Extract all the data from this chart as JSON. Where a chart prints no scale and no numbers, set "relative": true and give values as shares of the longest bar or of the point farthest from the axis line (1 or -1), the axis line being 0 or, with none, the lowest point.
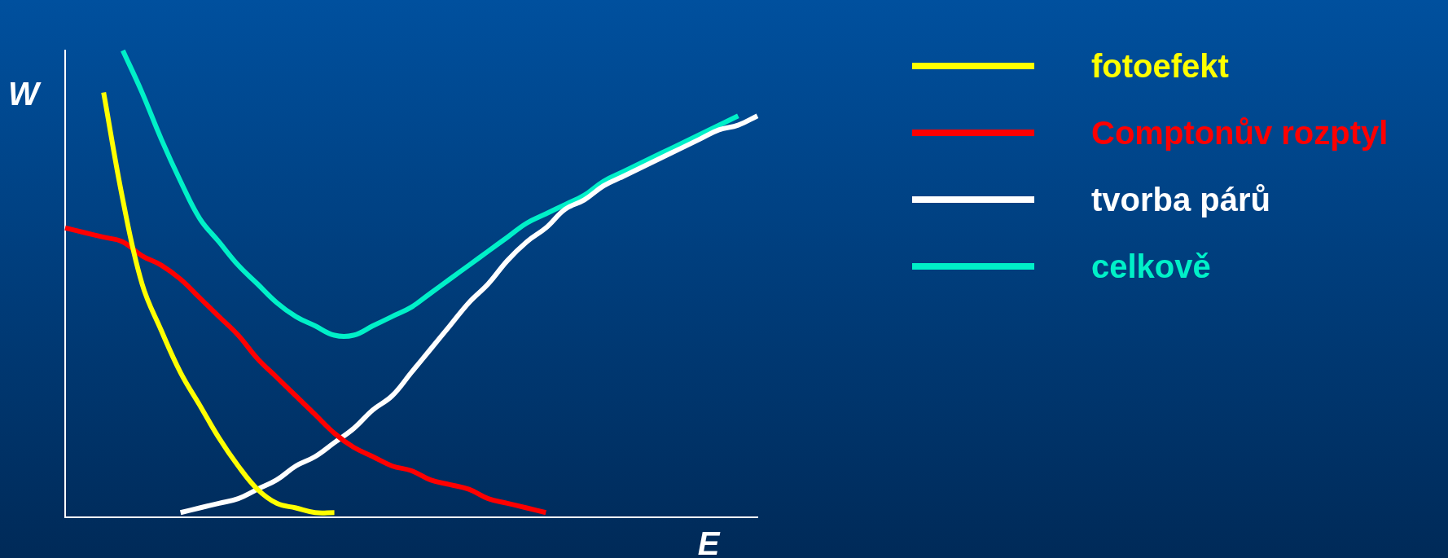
{
  "chart_data": {
    "type": "line",
    "relative": true,
    "xlabel": "E",
    "ylabel": "W",
    "legend": "right",
    "marker": "none",
    "grid": false,
    "categories": [
      null,
      null,
      null,
      null,
      null,
      null,
      null,
      null,
      null,
      null,
      null,
      null,
      null,
      null,
      null,
      null,
      null,
      null,
      null,
      null,
      null,
      null,
      null,
      null,
      null,
      null,
      null,
      null,
      null,
      null,
      null,
      null,
      null,
      null,
      null,
      null,
      null
    ],
    "series": [
      {
        "name": "fotoefekt",
        "color": "#ffff00",
        "values": [
          null,
          null,
          0.91,
          0.68,
          0.5,
          0.4,
          0.31,
          0.24,
          0.17,
          0.11,
          0.06,
          0.03,
          0.02,
          0.01,
          0.01,
          null,
          null,
          null,
          null,
          null,
          null,
          null,
          null,
          null,
          null,
          null,
          null,
          null,
          null,
          null,
          null,
          null,
          null,
          null,
          null,
          null,
          null
        ]
      },
      {
        "name": "Comptonův rozptyl",
        "color": "#ff0000",
        "values": [
          0.62,
          0.61,
          0.6,
          0.59,
          0.56,
          0.54,
          0.51,
          0.47,
          0.43,
          0.39,
          0.34,
          0.3,
          0.26,
          0.22,
          0.18,
          0.15,
          0.13,
          0.11,
          0.1,
          0.08,
          0.07,
          0.06,
          0.04,
          0.03,
          0.02,
          0.01,
          null,
          null,
          null,
          null,
          null,
          null,
          null,
          null,
          null,
          null,
          null
        ]
      },
      {
        "name": "tvorba párů",
        "color": "#ffffff",
        "values": [
          null,
          null,
          null,
          null,
          null,
          null,
          0.01,
          0.02,
          0.03,
          0.04,
          0.06,
          0.08,
          0.11,
          0.13,
          0.16,
          0.19,
          0.23,
          0.26,
          0.31,
          0.36,
          0.41,
          0.46,
          0.5,
          0.55,
          0.59,
          0.62,
          0.66,
          0.68,
          0.71,
          0.73,
          0.75,
          0.77,
          0.79,
          0.81,
          0.83,
          0.84,
          0.86
        ]
      },
      {
        "name": "celkově",
        "color": "#00f0c8",
        "values": [
          null,
          null,
          null,
          1.0,
          0.91,
          0.81,
          0.72,
          0.64,
          0.59,
          0.54,
          0.5,
          0.46,
          0.43,
          0.41,
          0.39,
          0.39,
          0.41,
          0.43,
          0.45,
          0.48,
          0.51,
          0.54,
          0.57,
          0.6,
          0.63,
          0.65,
          0.67,
          0.69,
          0.72,
          0.74,
          0.76,
          0.78,
          0.8,
          0.82,
          0.84,
          0.86,
          null
        ]
      }
    ]
  }
}
